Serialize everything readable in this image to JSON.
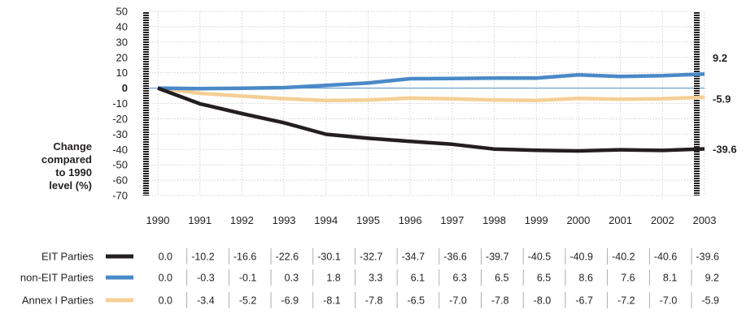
{
  "chart_data": {
    "type": "line",
    "ylabel_lines": [
      "Change",
      "compared",
      "to 1990",
      "level (%)"
    ],
    "xlabel": "",
    "ylim": [
      -70,
      50
    ],
    "yticks": [
      50,
      40,
      30,
      20,
      10,
      0,
      -10,
      -20,
      -30,
      -40,
      -50,
      -60,
      -70
    ],
    "ytick_labels": [
      "50",
      "40",
      "30",
      "20",
      "10",
      "0",
      "-10",
      "-20",
      "-30",
      "-40",
      "-50",
      "-60",
      "-70"
    ],
    "zero_tick_bold": true,
    "categories": [
      "1990",
      "1991",
      "1992",
      "1993",
      "1994",
      "1995",
      "1996",
      "1997",
      "1998",
      "1999",
      "2000",
      "2001",
      "2002",
      "2003"
    ],
    "grid": "dotted vertical and horizontal",
    "legend_placement": "bottom table",
    "series": [
      {
        "name": "EIT Parties",
        "color": "#231f20",
        "values": [
          0.0,
          -10.2,
          -16.6,
          -22.6,
          -30.1,
          -32.7,
          -34.7,
          -36.6,
          -39.7,
          -40.5,
          -40.9,
          -40.2,
          -40.6,
          -39.6
        ],
        "labels": [
          "0.0",
          "-10.2",
          "-16.6",
          "-22.6",
          "-30.1",
          "-32.7",
          "-34.7",
          "-36.6",
          "-39.7",
          "-40.5",
          "-40.9",
          "-40.2",
          "-40.6",
          "-39.6"
        ],
        "end_label": "-39.6"
      },
      {
        "name": "non-EIT Parties",
        "color": "#4a89c8",
        "values": [
          0.0,
          -0.3,
          -0.1,
          0.3,
          1.8,
          3.3,
          6.1,
          6.3,
          6.5,
          6.5,
          8.6,
          7.6,
          8.1,
          9.2
        ],
        "labels": [
          "0.0",
          "-0.3",
          "-0.1",
          "0.3",
          "1.8",
          "3.3",
          "6.1",
          "6.3",
          "6.5",
          "6.5",
          "8.6",
          "7.6",
          "8.1",
          "9.2"
        ],
        "end_label": "9.2"
      },
      {
        "name": "Annex I Parties",
        "color": "#f4cf95",
        "values": [
          0.0,
          -3.4,
          -5.2,
          -6.9,
          -8.1,
          -7.8,
          -6.5,
          -7.0,
          -7.8,
          -8.0,
          -6.7,
          -7.2,
          -7.0,
          -5.9
        ],
        "labels": [
          "0.0",
          "-3.4",
          "-5.2",
          "-6.9",
          "-8.1",
          "-7.8",
          "-6.5",
          "-7.0",
          "-7.8",
          "-8.0",
          "-6.7",
          "-7.2",
          "-7.0",
          "-5.9"
        ],
        "end_label": "-5.9"
      }
    ]
  }
}
